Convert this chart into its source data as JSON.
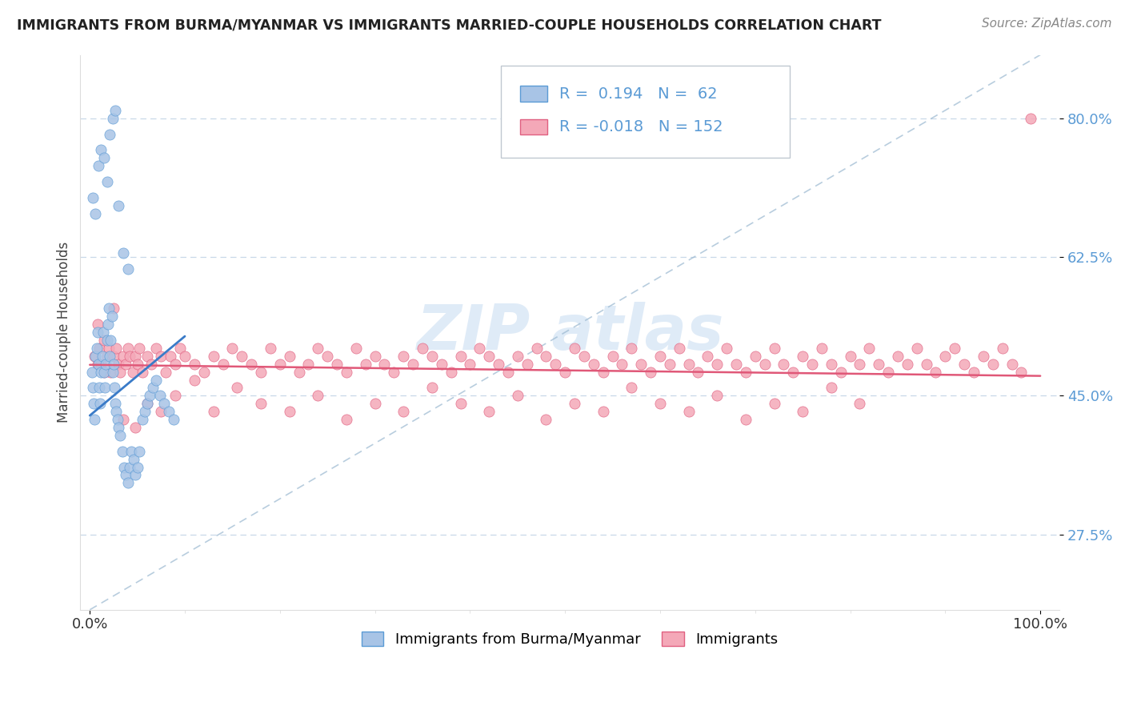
{
  "title": "IMMIGRANTS FROM BURMA/MYANMAR VS IMMIGRANTS MARRIED-COUPLE HOUSEHOLDS CORRELATION CHART",
  "source": "Source: ZipAtlas.com",
  "ylabel": "Married-couple Households",
  "legend_blue_r": "0.194",
  "legend_blue_n": "62",
  "legend_pink_r": "-0.018",
  "legend_pink_n": "152",
  "legend_label_blue": "Immigrants from Burma/Myanmar",
  "legend_label_pink": "Immigrants",
  "blue_fill": "#a8c4e6",
  "blue_edge": "#5b9bd5",
  "pink_fill": "#f4a8b8",
  "pink_edge": "#e06080",
  "blue_line": "#3a7bc8",
  "pink_line": "#e05878",
  "ytick_color": "#5b9bd5",
  "grid_color": "#c8d8e8",
  "diag_color": "#9ab8d0",
  "watermark_color": "#c0d8f0",
  "blue_x": [
    0.002,
    0.003,
    0.004,
    0.005,
    0.006,
    0.007,
    0.008,
    0.009,
    0.01,
    0.011,
    0.012,
    0.013,
    0.014,
    0.015,
    0.016,
    0.017,
    0.018,
    0.019,
    0.02,
    0.021,
    0.022,
    0.023,
    0.024,
    0.025,
    0.026,
    0.027,
    0.028,
    0.029,
    0.03,
    0.032,
    0.034,
    0.036,
    0.038,
    0.04,
    0.042,
    0.044,
    0.046,
    0.048,
    0.05,
    0.052,
    0.055,
    0.058,
    0.06,
    0.063,
    0.066,
    0.07,
    0.074,
    0.078,
    0.083,
    0.088,
    0.003,
    0.006,
    0.009,
    0.012,
    0.015,
    0.018,
    0.021,
    0.024,
    0.027,
    0.03,
    0.035,
    0.04
  ],
  "blue_y": [
    0.48,
    0.46,
    0.44,
    0.42,
    0.5,
    0.51,
    0.53,
    0.49,
    0.46,
    0.44,
    0.48,
    0.5,
    0.53,
    0.48,
    0.46,
    0.49,
    0.52,
    0.54,
    0.56,
    0.5,
    0.52,
    0.55,
    0.48,
    0.49,
    0.46,
    0.44,
    0.43,
    0.42,
    0.41,
    0.4,
    0.38,
    0.36,
    0.35,
    0.34,
    0.36,
    0.38,
    0.37,
    0.35,
    0.36,
    0.38,
    0.42,
    0.43,
    0.44,
    0.45,
    0.46,
    0.47,
    0.45,
    0.44,
    0.43,
    0.42,
    0.7,
    0.68,
    0.74,
    0.76,
    0.75,
    0.72,
    0.78,
    0.8,
    0.81,
    0.69,
    0.63,
    0.61
  ],
  "pink_x": [
    0.005,
    0.008,
    0.01,
    0.012,
    0.015,
    0.018,
    0.02,
    0.022,
    0.025,
    0.028,
    0.03,
    0.032,
    0.035,
    0.038,
    0.04,
    0.042,
    0.045,
    0.048,
    0.05,
    0.052,
    0.055,
    0.06,
    0.065,
    0.07,
    0.075,
    0.08,
    0.085,
    0.09,
    0.095,
    0.1,
    0.11,
    0.12,
    0.13,
    0.14,
    0.15,
    0.16,
    0.17,
    0.18,
    0.19,
    0.2,
    0.21,
    0.22,
    0.23,
    0.24,
    0.25,
    0.26,
    0.27,
    0.28,
    0.29,
    0.3,
    0.31,
    0.32,
    0.33,
    0.34,
    0.35,
    0.36,
    0.37,
    0.38,
    0.39,
    0.4,
    0.41,
    0.42,
    0.43,
    0.44,
    0.45,
    0.46,
    0.47,
    0.48,
    0.49,
    0.5,
    0.51,
    0.52,
    0.53,
    0.54,
    0.55,
    0.56,
    0.57,
    0.58,
    0.59,
    0.6,
    0.61,
    0.62,
    0.63,
    0.64,
    0.65,
    0.66,
    0.67,
    0.68,
    0.69,
    0.7,
    0.71,
    0.72,
    0.73,
    0.74,
    0.75,
    0.76,
    0.77,
    0.78,
    0.79,
    0.8,
    0.81,
    0.82,
    0.83,
    0.84,
    0.85,
    0.86,
    0.87,
    0.88,
    0.89,
    0.9,
    0.91,
    0.92,
    0.93,
    0.94,
    0.95,
    0.96,
    0.97,
    0.98,
    0.99,
    0.008,
    0.015,
    0.025,
    0.035,
    0.048,
    0.06,
    0.075,
    0.09,
    0.11,
    0.13,
    0.155,
    0.18,
    0.21,
    0.24,
    0.27,
    0.3,
    0.33,
    0.36,
    0.39,
    0.42,
    0.45,
    0.48,
    0.51,
    0.54,
    0.57,
    0.6,
    0.63,
    0.66,
    0.69,
    0.72,
    0.75,
    0.78,
    0.81
  ],
  "pink_y": [
    0.5,
    0.49,
    0.51,
    0.49,
    0.52,
    0.5,
    0.51,
    0.48,
    0.5,
    0.51,
    0.49,
    0.48,
    0.5,
    0.49,
    0.51,
    0.5,
    0.48,
    0.5,
    0.49,
    0.51,
    0.48,
    0.5,
    0.49,
    0.51,
    0.5,
    0.48,
    0.5,
    0.49,
    0.51,
    0.5,
    0.49,
    0.48,
    0.5,
    0.49,
    0.51,
    0.5,
    0.49,
    0.48,
    0.51,
    0.49,
    0.5,
    0.48,
    0.49,
    0.51,
    0.5,
    0.49,
    0.48,
    0.51,
    0.49,
    0.5,
    0.49,
    0.48,
    0.5,
    0.49,
    0.51,
    0.5,
    0.49,
    0.48,
    0.5,
    0.49,
    0.51,
    0.5,
    0.49,
    0.48,
    0.5,
    0.49,
    0.51,
    0.5,
    0.49,
    0.48,
    0.51,
    0.5,
    0.49,
    0.48,
    0.5,
    0.49,
    0.51,
    0.49,
    0.48,
    0.5,
    0.49,
    0.51,
    0.49,
    0.48,
    0.5,
    0.49,
    0.51,
    0.49,
    0.48,
    0.5,
    0.49,
    0.51,
    0.49,
    0.48,
    0.5,
    0.49,
    0.51,
    0.49,
    0.48,
    0.5,
    0.49,
    0.51,
    0.49,
    0.48,
    0.5,
    0.49,
    0.51,
    0.49,
    0.48,
    0.5,
    0.51,
    0.49,
    0.48,
    0.5,
    0.49,
    0.51,
    0.49,
    0.48,
    0.8,
    0.54,
    0.48,
    0.56,
    0.42,
    0.41,
    0.44,
    0.43,
    0.45,
    0.47,
    0.43,
    0.46,
    0.44,
    0.43,
    0.45,
    0.42,
    0.44,
    0.43,
    0.46,
    0.44,
    0.43,
    0.45,
    0.42,
    0.44,
    0.43,
    0.46,
    0.44,
    0.43,
    0.45,
    0.42,
    0.44,
    0.43,
    0.46,
    0.44
  ],
  "ylim": [
    0.18,
    0.88
  ],
  "xlim": [
    -0.01,
    1.02
  ],
  "ytick_vals": [
    0.275,
    0.45,
    0.625,
    0.8
  ],
  "ytick_labels": [
    "27.5%",
    "45.0%",
    "62.5%",
    "80.0%"
  ]
}
